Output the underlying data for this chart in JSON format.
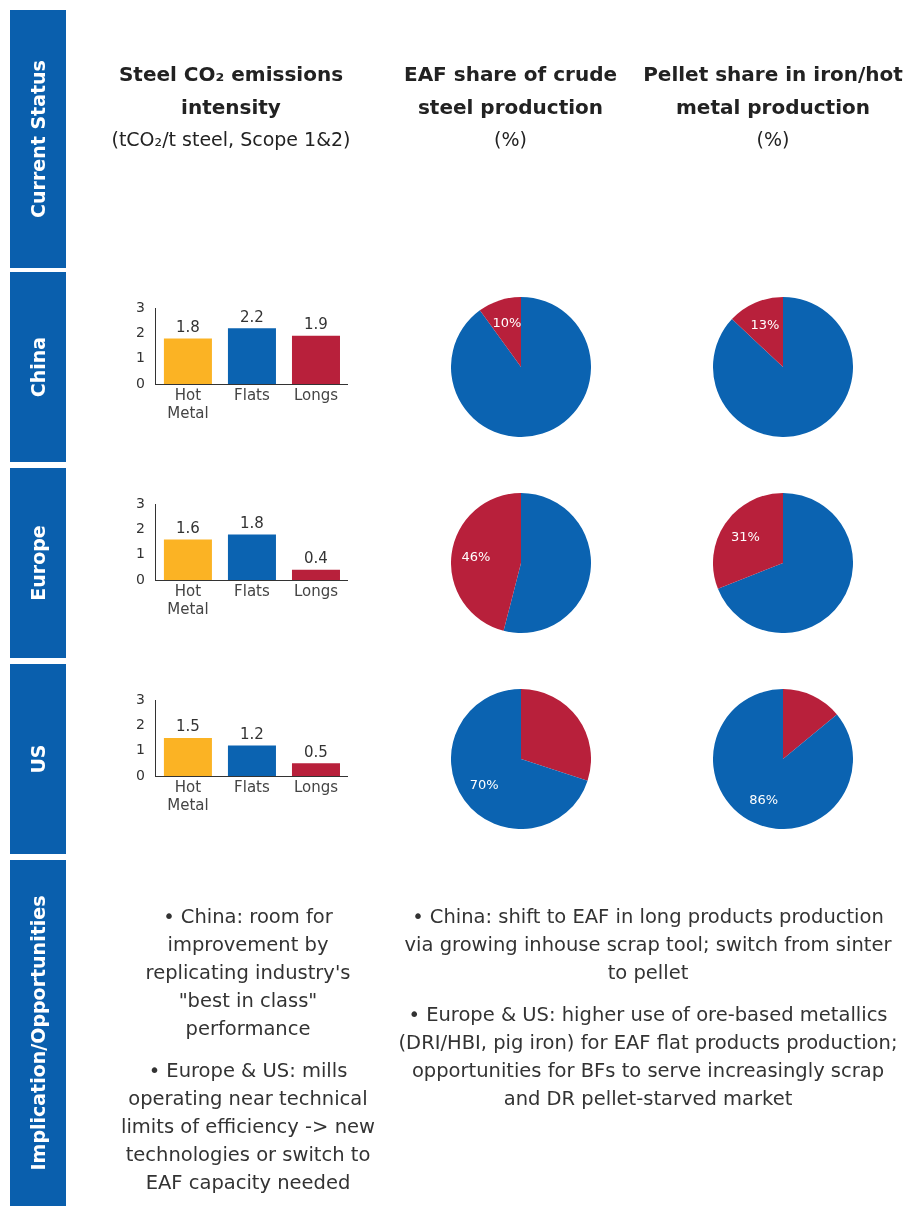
{
  "chart_data": [
    {
      "type": "other",
      "annotations": [
        "Current Status",
        "China",
        "Europe",
        "US",
        "Implication/Opportunities"
      ]
    },
    {
      "type": "bar",
      "title": "Steel CO₂ emissions intensity",
      "subtitle": "(tCO₂/t steel, Scope 1&2)",
      "categories": [
        "Hot Metal",
        "Flats",
        "Longs"
      ],
      "values": [
        1.8,
        2.2,
        1.9
      ],
      "colors": [
        "#fbb324",
        "#0b63b1",
        "#b8203b"
      ],
      "ylim": [
        0,
        3
      ],
      "yticks": [
        0,
        1,
        2,
        3
      ],
      "data_labels": true
    },
    {
      "type": "pie",
      "title": "EAF share of crude steel production",
      "subtitle": "(%)",
      "categories": [
        null,
        null
      ],
      "values": [
        90,
        10
      ],
      "colors": [
        "#0b63b1",
        "#b8203b"
      ],
      "value_labels": [
        null,
        "10%"
      ]
    },
    {
      "type": "pie",
      "title": "Pellet share in iron/hot metal production",
      "subtitle": "(%)",
      "categories": [
        null,
        null
      ],
      "values": [
        87,
        13
      ],
      "colors": [
        "#0b63b1",
        "#b8203b"
      ],
      "value_labels": [
        null,
        "13%"
      ]
    },
    {
      "type": "bar",
      "categories": [
        "Hot Metal",
        "Flats",
        "Longs"
      ],
      "values": [
        1.6,
        1.8,
        0.4
      ],
      "colors": [
        "#fbb324",
        "#0b63b1",
        "#b8203b"
      ],
      "ylim": [
        0,
        3
      ],
      "yticks": [
        0,
        1,
        2,
        3
      ],
      "data_labels": true
    },
    {
      "type": "pie",
      "categories": [
        null,
        null
      ],
      "values": [
        54,
        46
      ],
      "colors": [
        "#0b63b1",
        "#b8203b"
      ],
      "value_labels": [
        null,
        "46%"
      ]
    },
    {
      "type": "pie",
      "categories": [
        null,
        null
      ],
      "values": [
        69,
        31
      ],
      "colors": [
        "#0b63b1",
        "#b8203b"
      ],
      "value_labels": [
        null,
        "31%"
      ]
    },
    {
      "type": "bar",
      "categories": [
        "Hot Metal",
        "Flats",
        "Longs"
      ],
      "values": [
        1.5,
        1.2,
        0.5
      ],
      "colors": [
        "#fbb324",
        "#0b63b1",
        "#b8203b"
      ],
      "ylim": [
        0,
        3
      ],
      "yticks": [
        0,
        1,
        2,
        3
      ],
      "data_labels": true
    },
    {
      "type": "pie",
      "categories": [
        null,
        null
      ],
      "values": [
        30,
        70
      ],
      "colors": [
        "#b8203b",
        "#0b63b1"
      ],
      "value_labels": [
        null,
        "70%"
      ]
    },
    {
      "type": "pie",
      "categories": [
        null,
        null
      ],
      "values": [
        14,
        86
      ],
      "colors": [
        "#b8203b",
        "#0b63b1"
      ],
      "value_labels": [
        null,
        "86%"
      ]
    },
    {
      "type": "other",
      "annotations": [
        "• China: room for improvement by replicating industry's \"best in class\" performance",
        "• Europe & US: mills operating near technical limits of efficiency -> new technologies or switch to EAF capacity needed"
      ]
    },
    {
      "type": "other",
      "annotations": [
        "• China: shift to EAF in long products production via growing inhouse scrap tool; switch from sinter to pellet",
        "• Europe & US: higher use of ore-based metallics (DRI/HBI, pig iron) for EAF flat products production; opportunities for BFs to serve increasingly scrap and DR pellet-starved market"
      ]
    }
  ]
}
